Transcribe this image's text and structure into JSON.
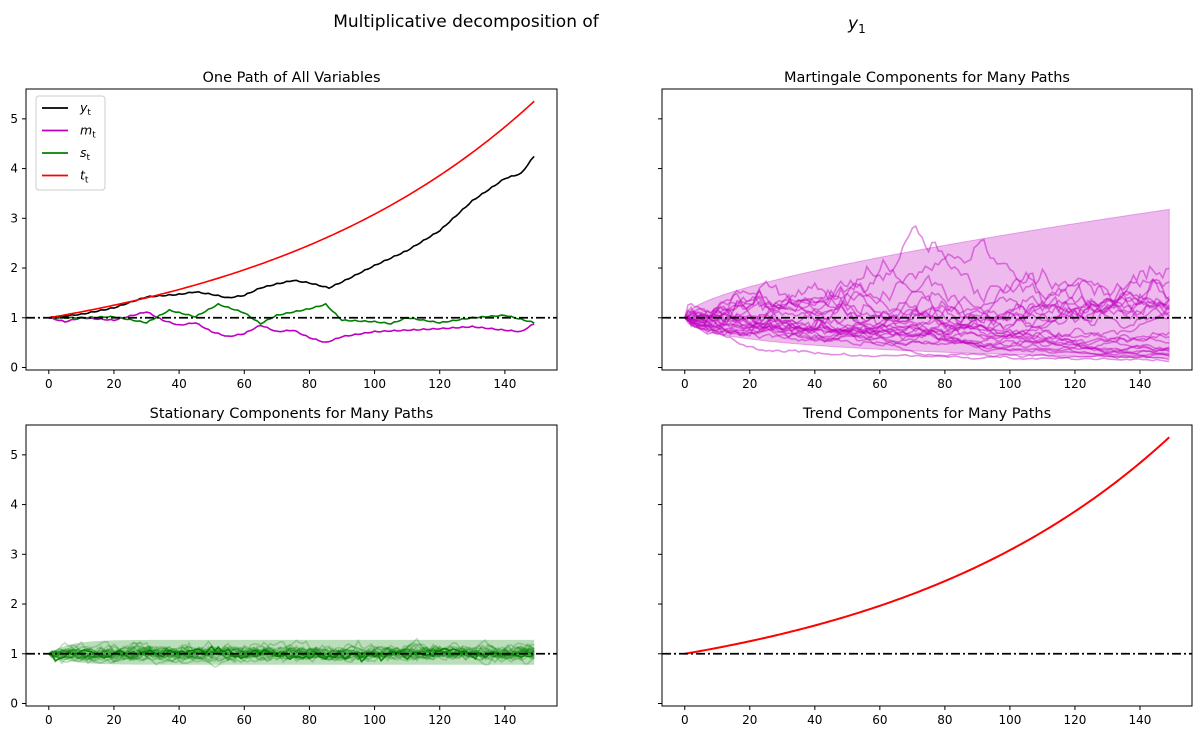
{
  "suptitle": "Multiplicative decomposition of",
  "suptitle_var": "y",
  "suptitle_sub": "1",
  "chart_data": [
    {
      "type": "line",
      "title": "One Path of All Variables",
      "xlim": [
        -7,
        156
      ],
      "ylim": [
        -0.05,
        5.6
      ],
      "xticks": [
        0,
        20,
        40,
        60,
        80,
        100,
        120,
        140
      ],
      "yticks": [
        0,
        1,
        2,
        3,
        4,
        5
      ],
      "legend_position": "top-left",
      "hline": 1,
      "series": [
        {
          "name": "y",
          "sub": "t",
          "color": "#000000",
          "x": [
            0,
            10,
            20,
            30,
            40,
            45,
            50,
            55,
            60,
            65,
            70,
            75,
            80,
            86,
            90,
            100,
            110,
            120,
            130,
            140,
            145,
            149
          ],
          "y": [
            1,
            1.07,
            1.2,
            1.42,
            1.47,
            1.52,
            1.47,
            1.4,
            1.45,
            1.6,
            1.68,
            1.75,
            1.7,
            1.6,
            1.72,
            2.05,
            2.35,
            2.75,
            3.35,
            3.8,
            3.9,
            4.25
          ]
        },
        {
          "name": "m",
          "sub": "t",
          "color": "#bf00bf",
          "x": [
            0,
            5,
            10,
            20,
            30,
            35,
            40,
            45,
            50,
            55,
            60,
            65,
            70,
            75,
            80,
            85,
            90,
            100,
            110,
            120,
            130,
            140,
            145,
            149
          ],
          "y": [
            1,
            0.92,
            1.0,
            0.95,
            1.12,
            0.95,
            0.85,
            0.9,
            0.72,
            0.62,
            0.68,
            0.85,
            0.72,
            0.75,
            0.6,
            0.5,
            0.62,
            0.72,
            0.75,
            0.78,
            0.82,
            0.75,
            0.72,
            0.88
          ]
        },
        {
          "name": "s",
          "sub": "t",
          "color": "#008000",
          "x": [
            0,
            10,
            20,
            30,
            37,
            45,
            52,
            60,
            65,
            70,
            80,
            85,
            90,
            100,
            105,
            110,
            120,
            130,
            140,
            149
          ],
          "y": [
            1,
            1.0,
            1.02,
            0.9,
            1.15,
            1.02,
            1.27,
            1.1,
            0.88,
            1.05,
            1.18,
            1.27,
            0.95,
            0.92,
            0.88,
            1.0,
            0.9,
            1.0,
            1.05,
            0.9
          ]
        },
        {
          "name": "t",
          "sub": "t",
          "color": "#ff0000",
          "growth": 0.01126,
          "n": 150
        }
      ]
    },
    {
      "type": "line",
      "title": "Martingale Components for Many Paths",
      "xlim": [
        -7,
        156
      ],
      "ylim": [
        -0.05,
        5.6
      ],
      "xticks": [
        0,
        20,
        40,
        60,
        80,
        100,
        120,
        140
      ],
      "yticks": [
        0,
        1,
        2,
        3,
        4,
        5
      ],
      "hline": 1,
      "color": "#bf00bf",
      "n_paths": 25,
      "n": 150,
      "sigma": 0.0593,
      "band_z": 1.96,
      "band_end": [
        0.2,
        3.42
      ]
    },
    {
      "type": "line",
      "title": "Stationary Components for Many Paths",
      "xlim": [
        -7,
        156
      ],
      "ylim": [
        -0.05,
        5.6
      ],
      "xticks": [
        0,
        20,
        40,
        60,
        80,
        100,
        120,
        140
      ],
      "yticks": [
        0,
        1,
        2,
        3,
        4,
        5
      ],
      "hline": 1,
      "color": "#008000",
      "n_paths": 25,
      "n": 150,
      "band": [
        0.78,
        1.28
      ]
    },
    {
      "type": "line",
      "title": "Trend Components for Many Paths",
      "xlim": [
        -7,
        156
      ],
      "ylim": [
        -0.05,
        5.6
      ],
      "xticks": [
        0,
        20,
        40,
        60,
        80,
        100,
        120,
        140
      ],
      "yticks": [
        0,
        1,
        2,
        3,
        4,
        5
      ],
      "hline": 1,
      "color": "#ff0000",
      "growth": 0.01126,
      "n": 150
    }
  ]
}
